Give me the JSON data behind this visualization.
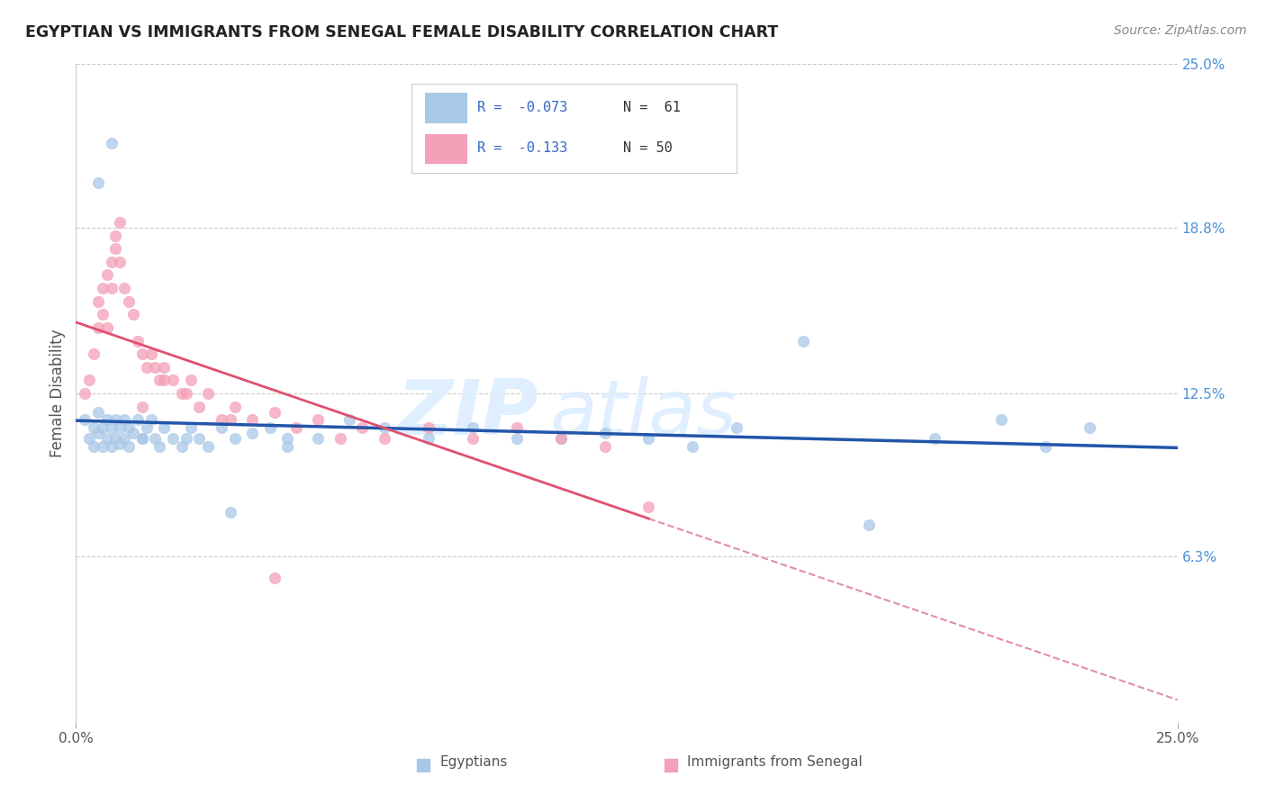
{
  "title": "EGYPTIAN VS IMMIGRANTS FROM SENEGAL FEMALE DISABILITY CORRELATION CHART",
  "source_text": "Source: ZipAtlas.com",
  "ylabel": "Female Disability",
  "xlim": [
    0.0,
    0.25
  ],
  "ylim": [
    0.0,
    0.25
  ],
  "x_tick_labels": [
    "0.0%",
    "25.0%"
  ],
  "y_tick_vals_right": [
    0.25,
    0.188,
    0.125,
    0.063
  ],
  "y_tick_labels_right": [
    "25.0%",
    "18.8%",
    "12.5%",
    "6.3%"
  ],
  "color_egyptian": "#a8c8e8",
  "color_senegal": "#f4a0b8",
  "color_egyptian_line": "#2255aa",
  "color_senegal_line": "#e05070",
  "color_dashed": "#e090a0",
  "watermark_zip": "ZIP",
  "watermark_atlas": "atlas",
  "legend_box_color": "#e8f0f8",
  "legend_border": "#c0c8d8",
  "egyptians_x": [
    0.002,
    0.003,
    0.004,
    0.004,
    0.005,
    0.005,
    0.006,
    0.006,
    0.007,
    0.007,
    0.008,
    0.008,
    0.009,
    0.009,
    0.01,
    0.01,
    0.011,
    0.011,
    0.012,
    0.012,
    0.013,
    0.014,
    0.015,
    0.016,
    0.017,
    0.018,
    0.019,
    0.02,
    0.022,
    0.024,
    0.026,
    0.028,
    0.03,
    0.033,
    0.036,
    0.04,
    0.044,
    0.048,
    0.055,
    0.062,
    0.07,
    0.08,
    0.09,
    0.1,
    0.11,
    0.12,
    0.13,
    0.14,
    0.15,
    0.165,
    0.18,
    0.195,
    0.21,
    0.22,
    0.23,
    0.048,
    0.035,
    0.025,
    0.015,
    0.008,
    0.005
  ],
  "egyptians_y": [
    0.115,
    0.108,
    0.112,
    0.105,
    0.11,
    0.118,
    0.112,
    0.105,
    0.115,
    0.108,
    0.112,
    0.105,
    0.115,
    0.108,
    0.112,
    0.106,
    0.115,
    0.108,
    0.112,
    0.105,
    0.11,
    0.115,
    0.108,
    0.112,
    0.115,
    0.108,
    0.105,
    0.112,
    0.108,
    0.105,
    0.112,
    0.108,
    0.105,
    0.112,
    0.108,
    0.11,
    0.112,
    0.105,
    0.108,
    0.115,
    0.112,
    0.108,
    0.112,
    0.108,
    0.108,
    0.11,
    0.108,
    0.105,
    0.112,
    0.145,
    0.075,
    0.108,
    0.115,
    0.105,
    0.112,
    0.108,
    0.08,
    0.108,
    0.108,
    0.22,
    0.205
  ],
  "senegal_x": [
    0.002,
    0.003,
    0.004,
    0.005,
    0.005,
    0.006,
    0.006,
    0.007,
    0.007,
    0.008,
    0.008,
    0.009,
    0.009,
    0.01,
    0.01,
    0.011,
    0.012,
    0.013,
    0.014,
    0.015,
    0.016,
    0.017,
    0.018,
    0.019,
    0.02,
    0.022,
    0.024,
    0.026,
    0.028,
    0.03,
    0.033,
    0.036,
    0.04,
    0.045,
    0.05,
    0.055,
    0.06,
    0.065,
    0.07,
    0.08,
    0.09,
    0.1,
    0.11,
    0.12,
    0.13,
    0.015,
    0.02,
    0.025,
    0.035,
    0.045
  ],
  "senegal_y": [
    0.125,
    0.13,
    0.14,
    0.15,
    0.16,
    0.155,
    0.165,
    0.15,
    0.17,
    0.175,
    0.165,
    0.18,
    0.185,
    0.19,
    0.175,
    0.165,
    0.16,
    0.155,
    0.145,
    0.14,
    0.135,
    0.14,
    0.135,
    0.13,
    0.135,
    0.13,
    0.125,
    0.13,
    0.12,
    0.125,
    0.115,
    0.12,
    0.115,
    0.118,
    0.112,
    0.115,
    0.108,
    0.112,
    0.108,
    0.112,
    0.108,
    0.112,
    0.108,
    0.105,
    0.082,
    0.12,
    0.13,
    0.125,
    0.115,
    0.055
  ]
}
